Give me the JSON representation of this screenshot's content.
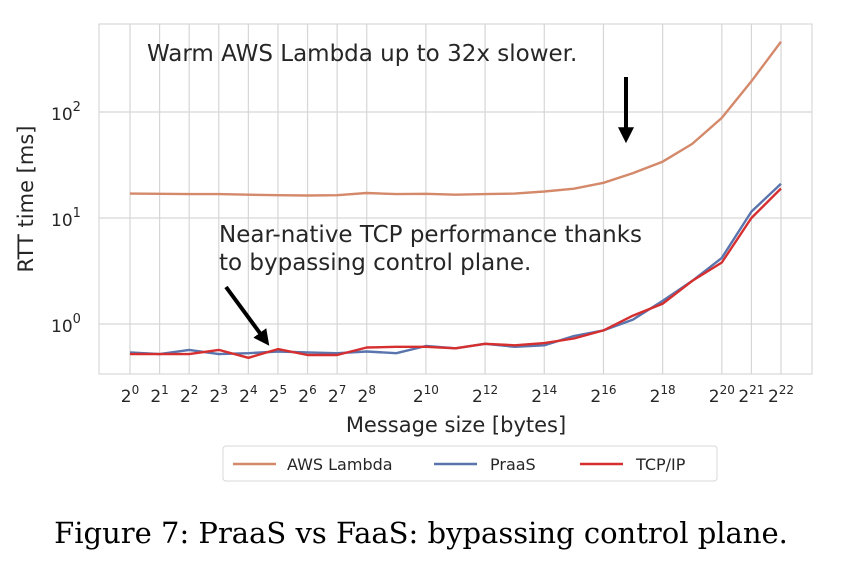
{
  "chart_data": {
    "type": "line",
    "xlabel": "Message size [bytes]",
    "ylabel": "RTT time [ms]",
    "x_scale": "log2",
    "y_scale": "log10",
    "x_exponents": [
      0,
      1,
      2,
      3,
      4,
      5,
      6,
      7,
      8,
      9,
      10,
      11,
      12,
      13,
      14,
      15,
      16,
      17,
      18,
      19,
      20,
      21,
      22
    ],
    "x_tick_exponents": [
      0,
      1,
      2,
      3,
      4,
      5,
      6,
      7,
      8,
      10,
      12,
      14,
      16,
      18,
      20,
      21,
      22
    ],
    "x_tick_base": "2",
    "y_tick_exponents": [
      0,
      1,
      2
    ],
    "y_tick_base": "10",
    "grid": true,
    "legend_placement": "bottom-center",
    "series": [
      {
        "name": "AWS Lambda",
        "color": "#d4896a",
        "values": [
          17.0,
          16.9,
          16.8,
          16.8,
          16.6,
          16.4,
          16.3,
          16.4,
          17.2,
          16.8,
          16.9,
          16.6,
          16.8,
          17.0,
          17.8,
          18.9,
          21.5,
          26.5,
          34,
          50,
          88,
          195,
          460
        ]
      },
      {
        "name": "PraaS",
        "color": "#5a74ad",
        "values": [
          0.54,
          0.52,
          0.57,
          0.52,
          0.53,
          0.55,
          0.54,
          0.53,
          0.55,
          0.53,
          0.62,
          0.59,
          0.65,
          0.61,
          0.63,
          0.77,
          0.87,
          1.1,
          1.65,
          2.55,
          4.2,
          11.5,
          21
        ]
      },
      {
        "name": "TCP/IP",
        "color": "#d62f2f",
        "values": [
          0.52,
          0.52,
          0.52,
          0.57,
          0.48,
          0.58,
          0.51,
          0.51,
          0.6,
          0.61,
          0.61,
          0.59,
          0.65,
          0.63,
          0.66,
          0.73,
          0.87,
          1.2,
          1.55,
          2.55,
          3.8,
          10.0,
          19
        ]
      }
    ],
    "annotations": [
      {
        "lines": [
          "Warm AWS Lambda up to 32x slower."
        ],
        "arrow": "down"
      },
      {
        "lines": [
          "Near-native TCP performance thanks",
          "to bypassing control plane."
        ],
        "arrow": "down-right"
      }
    ]
  },
  "caption": "Figure 7: PraaS vs FaaS: bypassing control plane."
}
